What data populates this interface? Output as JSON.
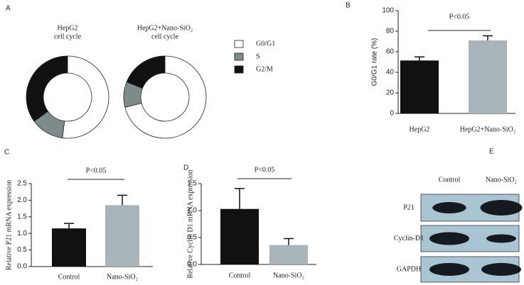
{
  "chart_data": [
    {
      "type": "donut",
      "panel": "A",
      "title": "HepG2",
      "subtitle": "cell cycle",
      "categories": [
        "G0/G1",
        "S",
        "G2/M"
      ],
      "values": [
        52,
        13,
        35
      ],
      "colors": [
        "#ffffff",
        "#7f8b8b",
        "#111111"
      ]
    },
    {
      "type": "donut",
      "title": "HepG2+Nano-SiO₂",
      "subtitle": "cell cycle",
      "categories": [
        "G0/G1",
        "S",
        "G2/M"
      ],
      "values": [
        71,
        10,
        19
      ],
      "colors": [
        "#ffffff",
        "#7f8b8b",
        "#111111"
      ]
    },
    {
      "type": "bar",
      "panel": "B",
      "annotation": "P<0.05",
      "y_label": "G0/G1 rate (%)",
      "categories": [
        "HepG2",
        "HepG2+Nano-SiO₂"
      ],
      "values": [
        51.5,
        71
      ],
      "errors": [
        3.5,
        4.5
      ],
      "colors": [
        "#111111",
        "#a9b3ba"
      ],
      "ylim": [
        0,
        100
      ],
      "yticks": [
        0,
        20,
        40,
        60,
        80,
        100
      ]
    },
    {
      "type": "bar",
      "panel": "C",
      "annotation": "P<0.05",
      "y_label": "Relative P21 mRNA expression",
      "categories": [
        "Control",
        "Nano-SiO₂"
      ],
      "values": [
        1.15,
        1.85
      ],
      "errors": [
        0.15,
        0.3
      ],
      "colors": [
        "#111111",
        "#a9b3ba"
      ],
      "ylim": [
        0,
        2.5
      ],
      "yticks": [
        {
          "value": 0,
          "label": "0.0"
        },
        {
          "value": 0.5,
          "label": "0.5"
        },
        {
          "value": 1,
          "label": "1.0"
        },
        {
          "value": 1.5,
          "label": "1.5"
        },
        {
          "value": 2,
          "label": "2.0"
        },
        2.5
      ]
    },
    {
      "type": "bar",
      "panel": "D",
      "annotation": "P<0.05",
      "y_label": "Relative Cyclin D1 mRNA expression",
      "categories": [
        "Control",
        "Nano-SiO₂"
      ],
      "values": [
        1.03,
        0.36
      ],
      "errors": [
        0.38,
        0.12
      ],
      "colors": [
        "#111111",
        "#a9b3ba"
      ],
      "ylim": [
        0,
        1.5
      ],
      "yticks": [
        {
          "value": 0,
          "label": "0.0"
        },
        {
          "value": 0.5,
          "label": "0.5"
        },
        {
          "value": 1,
          "label": "1.0"
        },
        1.5
      ]
    },
    {
      "type": "blot",
      "panel": "E",
      "columns": [
        "Control",
        "Nano-SiO₂"
      ],
      "rows": [
        "P21",
        "Cyclin-D1",
        "GAPDH"
      ]
    }
  ]
}
